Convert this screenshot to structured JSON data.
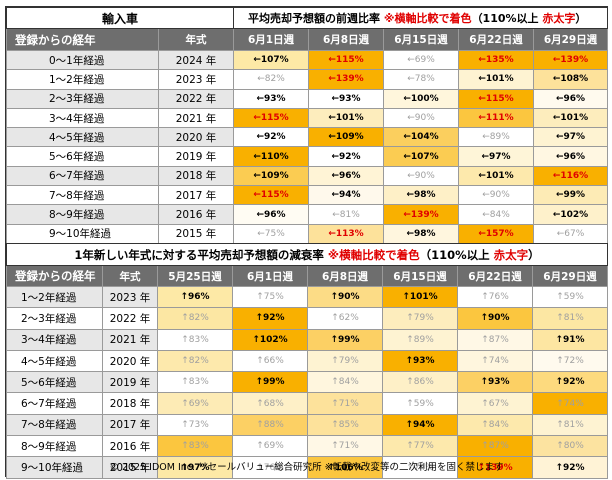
{
  "table1": {
    "title_left": "輸入車",
    "title_main": "平均売却予想額の前週比率",
    "title_note": "※横軸比較で着色",
    "title_paren_open": "（110%以上",
    "title_red": "赤太字",
    "title_paren_close": "）",
    "header_age": "登録からの経年",
    "header_year": "年式",
    "weeks": [
      "6月1日週",
      "6月8日週",
      "6月15日週",
      "6月22日週",
      "6月29日週"
    ],
    "rows": [
      {
        "age": "0～1年経過",
        "year": "2024 年",
        "cells": [
          {
            "t": "←107%",
            "bg": "#fde9a6",
            "s": "b"
          },
          {
            "t": "←115%",
            "bg": "#f9b000",
            "s": "r"
          },
          {
            "t": "←69%",
            "bg": "#ffffff",
            "s": "l"
          },
          {
            "t": "←135%",
            "bg": "#f9b000",
            "s": "r"
          },
          {
            "t": "←139%",
            "bg": "#f9b000",
            "s": "r"
          }
        ]
      },
      {
        "age": "1～2年経過",
        "year": "2023 年",
        "cells": [
          {
            "t": "←82%",
            "bg": "#ffffff",
            "s": "l"
          },
          {
            "t": "←139%",
            "bg": "#f9b000",
            "s": "r"
          },
          {
            "t": "←78%",
            "bg": "#ffffff",
            "s": "l"
          },
          {
            "t": "←101%",
            "bg": "#fef3d2",
            "s": "b"
          },
          {
            "t": "←108%",
            "bg": "#fde29b",
            "s": "b"
          }
        ]
      },
      {
        "age": "2～3年経過",
        "year": "2022 年",
        "cells": [
          {
            "t": "←93%",
            "bg": "#ffffff",
            "s": "b"
          },
          {
            "t": "←93%",
            "bg": "#ffffff",
            "s": "b"
          },
          {
            "t": "←100%",
            "bg": "#fff6dc",
            "s": "b"
          },
          {
            "t": "←115%",
            "bg": "#f9b000",
            "s": "r"
          },
          {
            "t": "←96%",
            "bg": "#fffaee",
            "s": "b"
          }
        ]
      },
      {
        "age": "3～4年経過",
        "year": "2021 年",
        "cells": [
          {
            "t": "←115%",
            "bg": "#f9b000",
            "s": "r"
          },
          {
            "t": "←101%",
            "bg": "#fdedbd",
            "s": "b"
          },
          {
            "t": "←90%",
            "bg": "#ffffff",
            "s": "l"
          },
          {
            "t": "←111%",
            "bg": "#fbc63f",
            "s": "r"
          },
          {
            "t": "←101%",
            "bg": "#fdedbd",
            "s": "b"
          }
        ]
      },
      {
        "age": "4～5年経過",
        "year": "2020 年",
        "cells": [
          {
            "t": "←92%",
            "bg": "#ffffff",
            "s": "b"
          },
          {
            "t": "←109%",
            "bg": "#f9b000",
            "s": "b"
          },
          {
            "t": "←104%",
            "bg": "#fbcf5e",
            "s": "b"
          },
          {
            "t": "←89%",
            "bg": "#ffffff",
            "s": "l"
          },
          {
            "t": "←97%",
            "bg": "#fef3d2",
            "s": "b"
          }
        ]
      },
      {
        "age": "5～6年経過",
        "year": "2019 年",
        "cells": [
          {
            "t": "←110%",
            "bg": "#f9b000",
            "s": "b"
          },
          {
            "t": "←92%",
            "bg": "#ffffff",
            "s": "b"
          },
          {
            "t": "←107%",
            "bg": "#fbcc52",
            "s": "b"
          },
          {
            "t": "←97%",
            "bg": "#fef5d8",
            "s": "b"
          },
          {
            "t": "←96%",
            "bg": "#fff7e2",
            "s": "b"
          }
        ]
      },
      {
        "age": "6～7年経過",
        "year": "2018 年",
        "cells": [
          {
            "t": "←109%",
            "bg": "#fbcc52",
            "s": "b"
          },
          {
            "t": "←96%",
            "bg": "#fff4d6",
            "s": "b"
          },
          {
            "t": "←90%",
            "bg": "#ffffff",
            "s": "l"
          },
          {
            "t": "←101%",
            "bg": "#fde9ac",
            "s": "b"
          },
          {
            "t": "←116%",
            "bg": "#f9b000",
            "s": "r"
          }
        ]
      },
      {
        "age": "7～8年経過",
        "year": "2017 年",
        "cells": [
          {
            "t": "←115%",
            "bg": "#f9b000",
            "s": "r"
          },
          {
            "t": "←94%",
            "bg": "#fff9ec",
            "s": "b"
          },
          {
            "t": "←98%",
            "bg": "#fef0c7",
            "s": "b"
          },
          {
            "t": "←90%",
            "bg": "#ffffff",
            "s": "l"
          },
          {
            "t": "←99%",
            "bg": "#fdebb5",
            "s": "b"
          }
        ]
      },
      {
        "age": "8～9年経過",
        "year": "2016 年",
        "cells": [
          {
            "t": "←96%",
            "bg": "#fffcf3",
            "s": "b"
          },
          {
            "t": "←81%",
            "bg": "#ffffff",
            "s": "l"
          },
          {
            "t": "←139%",
            "bg": "#f9b000",
            "s": "r"
          },
          {
            "t": "←84%",
            "bg": "#ffffff",
            "s": "l"
          },
          {
            "t": "←102%",
            "bg": "#fef1cb",
            "s": "b"
          }
        ]
      },
      {
        "age": "9～10年経過",
        "year": "2015 年",
        "cells": [
          {
            "t": "←75%",
            "bg": "#ffffff",
            "s": "l"
          },
          {
            "t": "←113%",
            "bg": "#fde29b",
            "s": "r"
          },
          {
            "t": "←98%",
            "bg": "#fff6de",
            "s": "b"
          },
          {
            "t": "←157%",
            "bg": "#f9b000",
            "s": "r"
          },
          {
            "t": "←67%",
            "bg": "#ffffff",
            "s": "l"
          }
        ]
      }
    ]
  },
  "table2": {
    "title_main": "1年新しい年式に対する平均売却予想額の減衰率",
    "title_note": "※横軸比較で着色",
    "title_paren_open": "（110%以上",
    "title_red": "赤太字",
    "title_paren_close": "）",
    "header_age": "登録からの経年",
    "header_year": "年式",
    "weeks": [
      "5月25日週",
      "6月1日週",
      "6月8日週",
      "6月15日週",
      "6月22日週",
      "6月29日週"
    ],
    "rows": [
      {
        "age": "1～2年経過",
        "year": "2023 年",
        "cells": [
          {
            "t": "↑96%",
            "bg": "#fde9a6",
            "s": "b"
          },
          {
            "t": "↑75%",
            "bg": "#ffffff",
            "s": "l"
          },
          {
            "t": "↑90%",
            "bg": "#fcdc86",
            "s": "b"
          },
          {
            "t": "↑101%",
            "bg": "#f9b000",
            "s": "b"
          },
          {
            "t": "↑76%",
            "bg": "#ffffff",
            "s": "l"
          },
          {
            "t": "↑59%",
            "bg": "#ffffff",
            "s": "l"
          }
        ]
      },
      {
        "age": "2～3年経過",
        "year": "2022 年",
        "cells": [
          {
            "t": "↑82%",
            "bg": "#fce7a3",
            "s": "l"
          },
          {
            "t": "↑92%",
            "bg": "#f9b000",
            "s": "b"
          },
          {
            "t": "↑62%",
            "bg": "#ffffff",
            "s": "l"
          },
          {
            "t": "↑79%",
            "bg": "#fdedbd",
            "s": "l"
          },
          {
            "t": "↑90%",
            "bg": "#fbc63f",
            "s": "b"
          },
          {
            "t": "↑81%",
            "bg": "#fce7a3",
            "s": "l"
          }
        ]
      },
      {
        "age": "3～4年経過",
        "year": "2021 年",
        "cells": [
          {
            "t": "↑83%",
            "bg": "#ffffff",
            "s": "l"
          },
          {
            "t": "↑102%",
            "bg": "#f9b000",
            "s": "b"
          },
          {
            "t": "↑99%",
            "bg": "#fcd064",
            "s": "b"
          },
          {
            "t": "↑89%",
            "bg": "#fef3d2",
            "s": "l"
          },
          {
            "t": "↑87%",
            "bg": "#fff8e6",
            "s": "l"
          },
          {
            "t": "↑91%",
            "bg": "#fde6a2",
            "s": "b"
          }
        ]
      },
      {
        "age": "4～5年経過",
        "year": "2020 年",
        "cells": [
          {
            "t": "↑82%",
            "bg": "#fde9ac",
            "s": "l"
          },
          {
            "t": "↑66%",
            "bg": "#ffffff",
            "s": "l"
          },
          {
            "t": "↑79%",
            "bg": "#fef3d2",
            "s": "l"
          },
          {
            "t": "↑93%",
            "bg": "#f9b000",
            "s": "b"
          },
          {
            "t": "↑74%",
            "bg": "#fff6de",
            "s": "l"
          },
          {
            "t": "↑72%",
            "bg": "#fffaee",
            "s": "l"
          }
        ]
      },
      {
        "age": "5～6年経過",
        "year": "2019 年",
        "cells": [
          {
            "t": "↑83%",
            "bg": "#ffffff",
            "s": "l"
          },
          {
            "t": "↑99%",
            "bg": "#f9b000",
            "s": "b"
          },
          {
            "t": "↑84%",
            "bg": "#fff6de",
            "s": "l"
          },
          {
            "t": "↑86%",
            "bg": "#fef0c7",
            "s": "l"
          },
          {
            "t": "↑93%",
            "bg": "#fcd064",
            "s": "b"
          },
          {
            "t": "↑92%",
            "bg": "#fdda7e",
            "s": "b"
          }
        ]
      },
      {
        "age": "6～7年経過",
        "year": "2018 年",
        "cells": [
          {
            "t": "↑69%",
            "bg": "#fdebb5",
            "s": "l"
          },
          {
            "t": "↑68%",
            "bg": "#fef0c7",
            "s": "l"
          },
          {
            "t": "↑71%",
            "bg": "#fde29b",
            "s": "l"
          },
          {
            "t": "↑59%",
            "bg": "#ffffff",
            "s": "l"
          },
          {
            "t": "↑67%",
            "bg": "#fef3d2",
            "s": "l"
          },
          {
            "t": "↑74%",
            "bg": "#f9b000",
            "s": "l"
          }
        ]
      },
      {
        "age": "7～8年経過",
        "year": "2017 年",
        "cells": [
          {
            "t": "↑73%",
            "bg": "#ffffff",
            "s": "l"
          },
          {
            "t": "↑88%",
            "bg": "#fcd064",
            "s": "l"
          },
          {
            "t": "↑85%",
            "bg": "#fde29b",
            "s": "l"
          },
          {
            "t": "↑94%",
            "bg": "#f9b000",
            "s": "b"
          },
          {
            "t": "↑84%",
            "bg": "#fde9ac",
            "s": "l"
          },
          {
            "t": "↑81%",
            "bg": "#fef3d2",
            "s": "l"
          }
        ]
      },
      {
        "age": "8～9年経過",
        "year": "2016 年",
        "cells": [
          {
            "t": "↑83%",
            "bg": "#fbc63f",
            "s": "l"
          },
          {
            "t": "↑69%",
            "bg": "#ffffff",
            "s": "l"
          },
          {
            "t": "↑71%",
            "bg": "#fff8e6",
            "s": "l"
          },
          {
            "t": "↑77%",
            "bg": "#fde9ac",
            "s": "l"
          },
          {
            "t": "↑87%",
            "bg": "#f9b000",
            "s": "l"
          },
          {
            "t": "↑80%",
            "bg": "#fce3a0",
            "s": "l"
          }
        ]
      },
      {
        "age": "9～10年経過",
        "year": "2015 年",
        "cells": [
          {
            "t": "↑97%",
            "bg": "#fde9a6",
            "s": "b"
          },
          {
            "t": "↑76%",
            "bg": "#ffffff",
            "s": "l"
          },
          {
            "t": "↑106%",
            "bg": "#fbc63f",
            "s": "b"
          },
          {
            "t": "↑74%",
            "bg": "#ffffff",
            "s": "l"
          },
          {
            "t": "↑139%",
            "bg": "#f9b000",
            "s": "r"
          },
          {
            "t": "↑92%",
            "bg": "#fff3d6",
            "s": "b"
          }
        ]
      }
    ]
  },
  "footer": "© 2025 IDOM Inc. リセールバリュー総合研究所 ※転載や改変等の二次利用を固く禁じます"
}
